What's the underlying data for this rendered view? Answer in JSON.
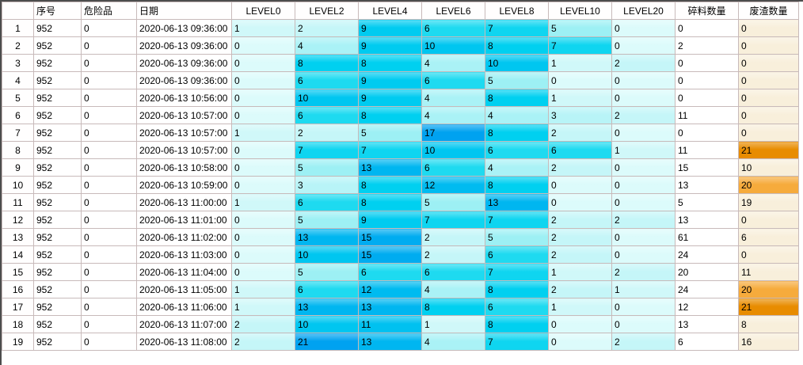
{
  "table": {
    "columns": [
      "",
      "序号",
      "危险品",
      "日期",
      "LEVEL0",
      "LEVEL2",
      "LEVEL4",
      "LEVEL6",
      "LEVEL8",
      "LEVEL10",
      "LEVEL20",
      "碎料数量",
      "废渣数量"
    ],
    "rows": [
      {
        "n": "1",
        "serial": "952",
        "hazard": "0",
        "date": "2020-06-13 09:36:00",
        "levels": [
          "1",
          "2",
          "9",
          "6",
          "7",
          "5",
          "0"
        ],
        "scrap": "0",
        "waste": "0"
      },
      {
        "n": "2",
        "serial": "952",
        "hazard": "0",
        "date": "2020-06-13 09:36:00",
        "levels": [
          "0",
          "4",
          "9",
          "10",
          "8",
          "7",
          "0"
        ],
        "scrap": "2",
        "waste": "0"
      },
      {
        "n": "3",
        "serial": "952",
        "hazard": "0",
        "date": "2020-06-13 09:36:00",
        "levels": [
          "0",
          "8",
          "8",
          "4",
          "10",
          "1",
          "2"
        ],
        "scrap": "0",
        "waste": "0"
      },
      {
        "n": "4",
        "serial": "952",
        "hazard": "0",
        "date": "2020-06-13 09:36:00",
        "levels": [
          "0",
          "6",
          "9",
          "6",
          "5",
          "0",
          "0"
        ],
        "scrap": "0",
        "waste": "0"
      },
      {
        "n": "5",
        "serial": "952",
        "hazard": "0",
        "date": "2020-06-13 10:56:00",
        "levels": [
          "0",
          "10",
          "9",
          "4",
          "8",
          "1",
          "0"
        ],
        "scrap": "0",
        "waste": "0"
      },
      {
        "n": "6",
        "serial": "952",
        "hazard": "0",
        "date": "2020-06-13 10:57:00",
        "levels": [
          "0",
          "6",
          "8",
          "4",
          "4",
          "3",
          "2"
        ],
        "scrap": "11",
        "waste": "0"
      },
      {
        "n": "7",
        "serial": "952",
        "hazard": "0",
        "date": "2020-06-13 10:57:00",
        "levels": [
          "1",
          "2",
          "5",
          "17",
          "8",
          "2",
          "0"
        ],
        "scrap": "0",
        "waste": "0"
      },
      {
        "n": "8",
        "serial": "952",
        "hazard": "0",
        "date": "2020-06-13 10:57:00",
        "levels": [
          "0",
          "7",
          "7",
          "10",
          "6",
          "6",
          "1"
        ],
        "scrap": "11",
        "waste": "21"
      },
      {
        "n": "9",
        "serial": "952",
        "hazard": "0",
        "date": "2020-06-13 10:58:00",
        "levels": [
          "0",
          "5",
          "13",
          "6",
          "4",
          "2",
          "0"
        ],
        "scrap": "15",
        "waste": "10"
      },
      {
        "n": "10",
        "serial": "952",
        "hazard": "0",
        "date": "2020-06-13 10:59:00",
        "levels": [
          "0",
          "3",
          "8",
          "12",
          "8",
          "0",
          "0"
        ],
        "scrap": "13",
        "waste": "20"
      },
      {
        "n": "11",
        "serial": "952",
        "hazard": "0",
        "date": "2020-06-13 11:00:00",
        "levels": [
          "1",
          "6",
          "8",
          "5",
          "13",
          "0",
          "0"
        ],
        "scrap": "5",
        "waste": "19"
      },
      {
        "n": "12",
        "serial": "952",
        "hazard": "0",
        "date": "2020-06-13 11:01:00",
        "levels": [
          "0",
          "5",
          "9",
          "7",
          "7",
          "2",
          "2"
        ],
        "scrap": "13",
        "waste": "0"
      },
      {
        "n": "13",
        "serial": "952",
        "hazard": "0",
        "date": "2020-06-13 11:02:00",
        "levels": [
          "0",
          "13",
          "15",
          "2",
          "5",
          "2",
          "0"
        ],
        "scrap": "61",
        "waste": "6"
      },
      {
        "n": "14",
        "serial": "952",
        "hazard": "0",
        "date": "2020-06-13 11:03:00",
        "levels": [
          "0",
          "10",
          "15",
          "2",
          "6",
          "2",
          "0"
        ],
        "scrap": "24",
        "waste": "0"
      },
      {
        "n": "15",
        "serial": "952",
        "hazard": "0",
        "date": "2020-06-13 11:04:00",
        "levels": [
          "0",
          "5",
          "6",
          "6",
          "7",
          "1",
          "2"
        ],
        "scrap": "20",
        "waste": "11"
      },
      {
        "n": "16",
        "serial": "952",
        "hazard": "0",
        "date": "2020-06-13 11:05:00",
        "levels": [
          "1",
          "6",
          "12",
          "4",
          "8",
          "2",
          "1"
        ],
        "scrap": "24",
        "waste": "20"
      },
      {
        "n": "17",
        "serial": "952",
        "hazard": "0",
        "date": "2020-06-13 11:06:00",
        "levels": [
          "1",
          "13",
          "13",
          "8",
          "6",
          "1",
          "0"
        ],
        "scrap": "12",
        "waste": "21"
      },
      {
        "n": "18",
        "serial": "952",
        "hazard": "0",
        "date": "2020-06-13 11:07:00",
        "levels": [
          "2",
          "10",
          "11",
          "1",
          "8",
          "0",
          "0"
        ],
        "scrap": "13",
        "waste": "8"
      },
      {
        "n": "19",
        "serial": "952",
        "hazard": "0",
        "date": "2020-06-13 11:08:00",
        "levels": [
          "2",
          "21",
          "13",
          "4",
          "7",
          "0",
          "2"
        ],
        "scrap": "6",
        "waste": "16"
      }
    ]
  },
  "colors": {
    "level_scale_low": "#dcfbfb",
    "level_scale_mid": "#1edaf0",
    "level_scale_high": "#00a2ee",
    "waste_base": "#f8efdb",
    "waste_level_20": "#f6ab3c",
    "waste_level_21": "#e88c00",
    "grid_line": "#c8baba",
    "window_border": "#4d4d4d",
    "header_bg": "#ffffff"
  }
}
